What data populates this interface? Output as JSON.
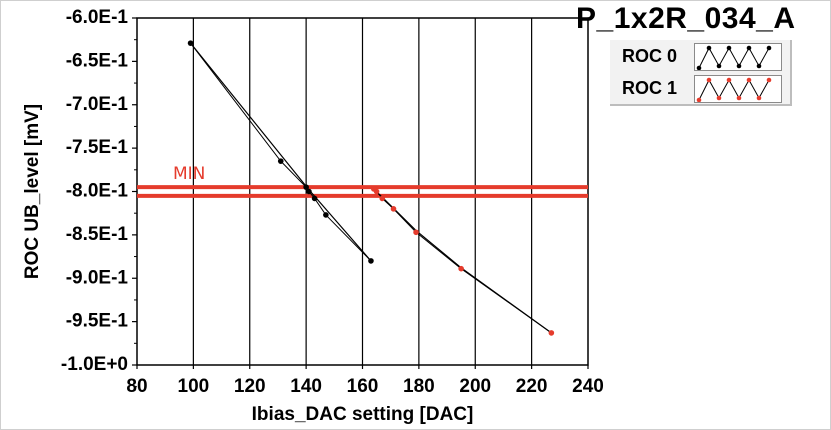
{
  "chart_data": {
    "type": "scatter",
    "title": "P_1x2R_034_A",
    "xlabel": "Ibias_DAC setting [DAC]",
    "ylabel": "ROC UB_level [mV]",
    "xlim": [
      80,
      240
    ],
    "ylim": [
      -1.0,
      -0.6
    ],
    "x_ticks": [
      "80",
      "100",
      "120",
      "140",
      "160",
      "180",
      "200",
      "220",
      "240"
    ],
    "y_ticks": [
      "-6.0E-1",
      "-6.5E-1",
      "-7.0E-1",
      "-7.5E-1",
      "-8.0E-1",
      "-8.5E-1",
      "-9.0E-1",
      "-9.5E-1",
      "-1.0E+0"
    ],
    "grid": "vertical",
    "legend_position": "top-right",
    "series": [
      {
        "name": "ROC 0",
        "color": "#000000",
        "points": [
          [
            99,
            -0.629
          ],
          [
            131,
            -0.765
          ],
          [
            140,
            -0.795
          ],
          [
            141,
            -0.8
          ],
          [
            143,
            -0.808
          ],
          [
            147,
            -0.827
          ],
          [
            163,
            -0.88
          ]
        ],
        "fit_line": [
          [
            99,
            -0.629
          ],
          [
            141,
            -0.798
          ],
          [
            163,
            -0.88
          ]
        ]
      },
      {
        "name": "ROC 1",
        "color": "#e53b2c",
        "points": [
          [
            164,
            -0.797
          ],
          [
            165,
            -0.8
          ],
          [
            167,
            -0.808
          ],
          [
            171,
            -0.82
          ],
          [
            179,
            -0.847
          ],
          [
            195,
            -0.889
          ],
          [
            227,
            -0.963
          ]
        ],
        "fit_line": [
          [
            164,
            -0.797
          ],
          [
            179,
            -0.845
          ],
          [
            195,
            -0.888
          ],
          [
            227,
            -0.963
          ]
        ]
      }
    ],
    "threshold_lines": [
      {
        "y": -0.795,
        "color": "#e53b2c"
      },
      {
        "y": -0.805,
        "color": "#e53b2c"
      }
    ],
    "annotation": "MIN"
  }
}
